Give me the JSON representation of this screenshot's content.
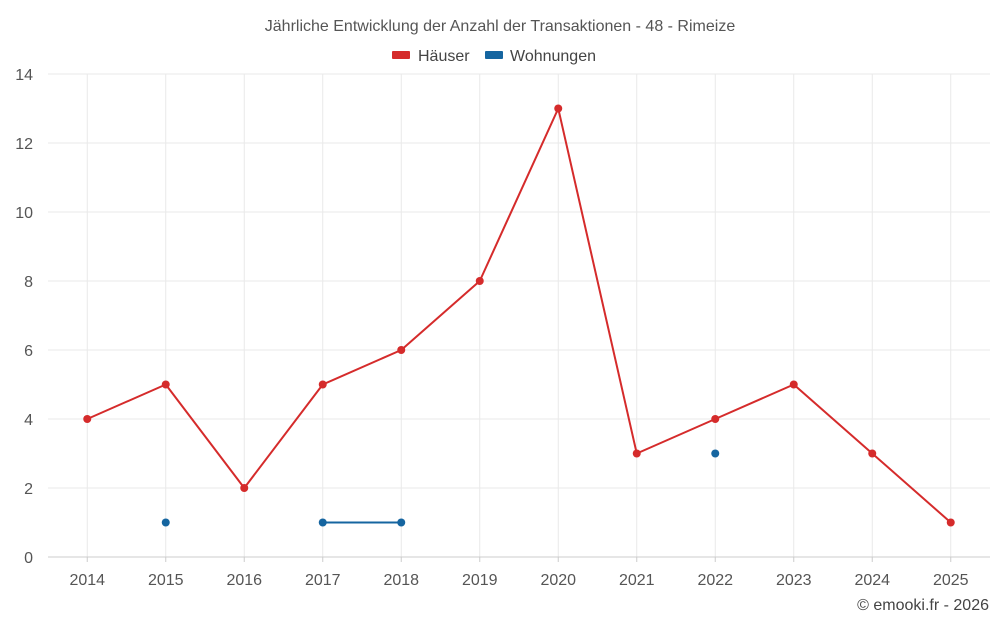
{
  "chart_data": {
    "type": "line",
    "title": "Jährliche Entwicklung der Anzahl der Transaktionen - 48 - Rimeize",
    "xlabel": "",
    "ylabel": "",
    "categories": [
      "2014",
      "2015",
      "2016",
      "2017",
      "2018",
      "2019",
      "2020",
      "2021",
      "2022",
      "2023",
      "2024",
      "2025"
    ],
    "ylim": [
      0,
      14
    ],
    "yticks": [
      "0",
      "2",
      "4",
      "6",
      "8",
      "10",
      "12",
      "14"
    ],
    "grid": true,
    "legend_position": "top-center",
    "series": [
      {
        "name": "Häuser",
        "color": "#d52b2b",
        "values": [
          4,
          5,
          2,
          5,
          6,
          8,
          13,
          3,
          4,
          5,
          3,
          1
        ]
      },
      {
        "name": "Wohnungen",
        "color": "#1565a0",
        "values": [
          null,
          1,
          null,
          1,
          1,
          null,
          null,
          null,
          3,
          null,
          null,
          null
        ]
      }
    ]
  },
  "credit": "© emooki.fr - 2026"
}
